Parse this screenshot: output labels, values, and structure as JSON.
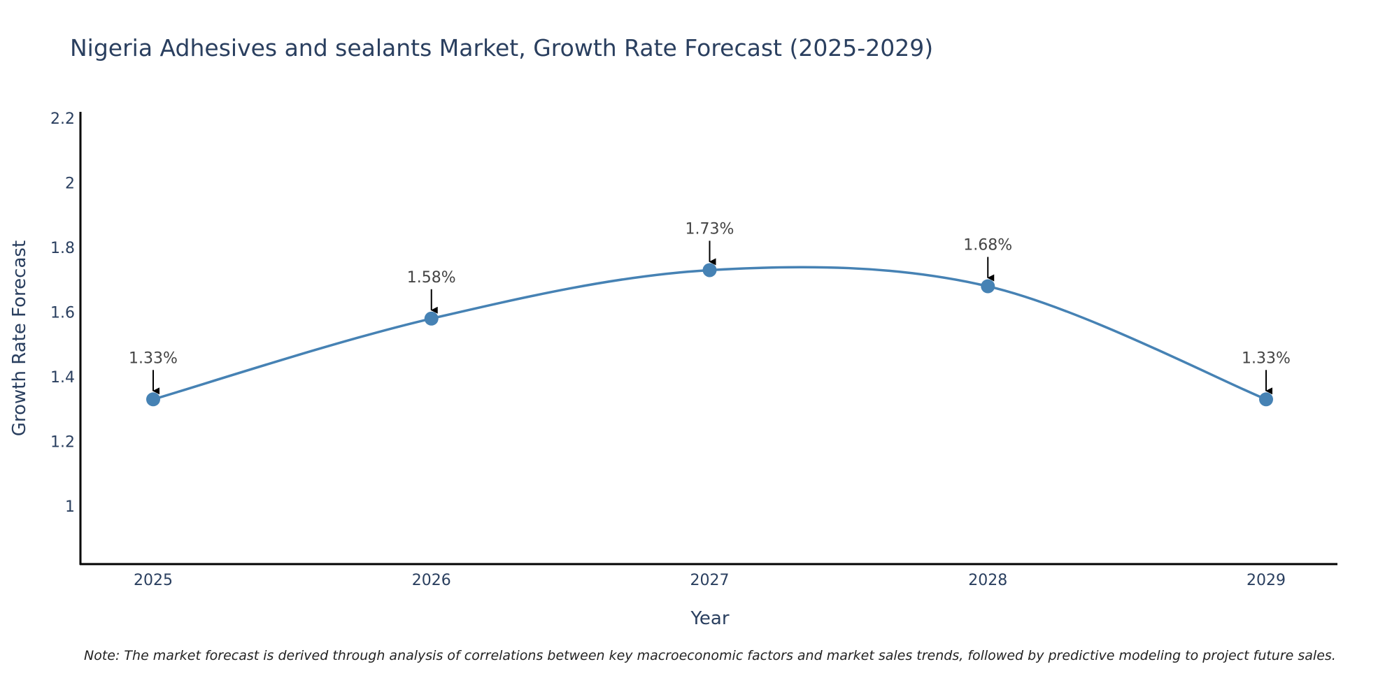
{
  "chart_data": {
    "type": "line",
    "title": "Nigeria Adhesives and sealants Market, Growth Rate Forecast (2025-2029)",
    "xlabel": "Year",
    "ylabel": "Growth Rate Forecast",
    "categories": [
      "2025",
      "2026",
      "2027",
      "2028",
      "2029"
    ],
    "series": [
      {
        "name": "Growth Rate Forecast",
        "values": [
          1.33,
          1.58,
          1.73,
          1.68,
          1.33
        ],
        "labels": [
          "1.33%",
          "1.58%",
          "1.73%",
          "1.68%",
          "1.33%"
        ]
      }
    ],
    "ylim": [
      0.82,
      2.22
    ],
    "yticks": [
      1,
      1.2,
      1.4,
      1.6,
      1.8,
      2,
      2.2
    ],
    "ytick_labels": [
      "1",
      "1.2",
      "1.4",
      "1.6",
      "1.8",
      "2",
      "2.2"
    ],
    "grid": false,
    "line_color": "#4682b4",
    "annotation_color": "#000000",
    "note": "Note: The market forecast is derived through analysis of correlations between key macroeconomic factors and market sales trends, followed by predictive modeling to project future sales."
  }
}
